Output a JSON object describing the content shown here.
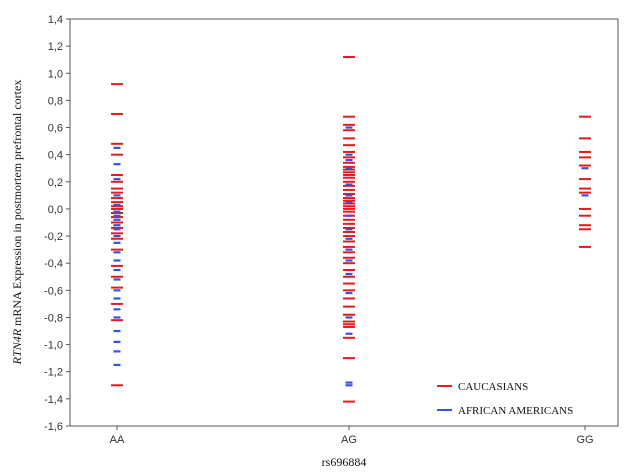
{
  "chart_data": {
    "type": "scatter",
    "xlabel": "rs696884",
    "ylabel_italic": "RTN4R",
    "ylabel_rest": " mRNA Expression in postmortem prefrontal cortex",
    "categories": [
      "AA",
      "AG",
      "GG"
    ],
    "ylim": [
      -1.6,
      1.4
    ],
    "yticks": [
      "1,4",
      "1,2",
      "1,0",
      "0,8",
      "0,6",
      "0,4",
      "0,2",
      "0,0",
      "-0,2",
      "-0,4",
      "-0,6",
      "-0,8",
      "-1,0",
      "-1,2",
      "-1,4",
      "-1,6"
    ],
    "grid": false,
    "legend_position": "bottom-right",
    "series": [
      {
        "name": "CAUCASIANS",
        "color": "#e41a1c",
        "points": [
          [
            "AA",
            0.92
          ],
          [
            "AA",
            0.7
          ],
          [
            "AA",
            0.48
          ],
          [
            "AA",
            0.4
          ],
          [
            "AA",
            0.25
          ],
          [
            "AA",
            0.2
          ],
          [
            "AA",
            0.15
          ],
          [
            "AA",
            0.12
          ],
          [
            "AA",
            0.08
          ],
          [
            "AA",
            0.05
          ],
          [
            "AA",
            0.02
          ],
          [
            "AA",
            0.0
          ],
          [
            "AA",
            -0.03
          ],
          [
            "AA",
            -0.06
          ],
          [
            "AA",
            -0.1
          ],
          [
            "AA",
            -0.14
          ],
          [
            "AA",
            -0.18
          ],
          [
            "AA",
            -0.22
          ],
          [
            "AA",
            -0.3
          ],
          [
            "AA",
            -0.42
          ],
          [
            "AA",
            -0.5
          ],
          [
            "AA",
            -0.58
          ],
          [
            "AA",
            -0.7
          ],
          [
            "AA",
            -0.82
          ],
          [
            "AA",
            -1.3
          ],
          [
            "AG",
            1.12
          ],
          [
            "AG",
            0.68
          ],
          [
            "AG",
            0.62
          ],
          [
            "AG",
            0.58
          ],
          [
            "AG",
            0.52
          ],
          [
            "AG",
            0.47
          ],
          [
            "AG",
            0.42
          ],
          [
            "AG",
            0.38
          ],
          [
            "AG",
            0.34
          ],
          [
            "AG",
            0.31
          ],
          [
            "AG",
            0.29
          ],
          [
            "AG",
            0.27
          ],
          [
            "AG",
            0.25
          ],
          [
            "AG",
            0.23
          ],
          [
            "AG",
            0.2
          ],
          [
            "AG",
            0.17
          ],
          [
            "AG",
            0.14
          ],
          [
            "AG",
            0.11
          ],
          [
            "AG",
            0.08
          ],
          [
            "AG",
            0.06
          ],
          [
            "AG",
            0.04
          ],
          [
            "AG",
            0.02
          ],
          [
            "AG",
            0.0
          ],
          [
            "AG",
            -0.02
          ],
          [
            "AG",
            -0.05
          ],
          [
            "AG",
            -0.08
          ],
          [
            "AG",
            -0.11
          ],
          [
            "AG",
            -0.14
          ],
          [
            "AG",
            -0.17
          ],
          [
            "AG",
            -0.2
          ],
          [
            "AG",
            -0.24
          ],
          [
            "AG",
            -0.28
          ],
          [
            "AG",
            -0.32
          ],
          [
            "AG",
            -0.36
          ],
          [
            "AG",
            -0.4
          ],
          [
            "AG",
            -0.45
          ],
          [
            "AG",
            -0.5
          ],
          [
            "AG",
            -0.55
          ],
          [
            "AG",
            -0.6
          ],
          [
            "AG",
            -0.66
          ],
          [
            "AG",
            -0.72
          ],
          [
            "AG",
            -0.78
          ],
          [
            "AG",
            -0.83
          ],
          [
            "AG",
            -0.85
          ],
          [
            "AG",
            -0.87
          ],
          [
            "AG",
            -0.95
          ],
          [
            "AG",
            -1.1
          ],
          [
            "AG",
            -1.42
          ],
          [
            "GG",
            0.68
          ],
          [
            "GG",
            0.52
          ],
          [
            "GG",
            0.42
          ],
          [
            "GG",
            0.38
          ],
          [
            "GG",
            0.32
          ],
          [
            "GG",
            0.22
          ],
          [
            "GG",
            0.15
          ],
          [
            "GG",
            0.12
          ],
          [
            "GG",
            0.0
          ],
          [
            "GG",
            -0.05
          ],
          [
            "GG",
            -0.12
          ],
          [
            "GG",
            -0.15
          ],
          [
            "GG",
            -0.28
          ]
        ]
      },
      {
        "name": "AFRICAN AMERICANS",
        "color": "#3355dd",
        "points": [
          [
            "AA",
            0.45
          ],
          [
            "AA",
            0.33
          ],
          [
            "AA",
            0.22
          ],
          [
            "AA",
            0.1
          ],
          [
            "AA",
            0.03
          ],
          [
            "AA",
            -0.02
          ],
          [
            "AA",
            -0.05
          ],
          [
            "AA",
            -0.08
          ],
          [
            "AA",
            -0.12
          ],
          [
            "AA",
            -0.15
          ],
          [
            "AA",
            -0.2
          ],
          [
            "AA",
            -0.25
          ],
          [
            "AA",
            -0.32
          ],
          [
            "AA",
            -0.38
          ],
          [
            "AA",
            -0.45
          ],
          [
            "AA",
            -0.52
          ],
          [
            "AA",
            -0.6
          ],
          [
            "AA",
            -0.66
          ],
          [
            "AA",
            -0.74
          ],
          [
            "AA",
            -0.8
          ],
          [
            "AA",
            -0.9
          ],
          [
            "AA",
            -0.98
          ],
          [
            "AA",
            -1.05
          ],
          [
            "AA",
            -1.15
          ],
          [
            "AG",
            0.6
          ],
          [
            "AG",
            0.4
          ],
          [
            "AG",
            0.36
          ],
          [
            "AG",
            0.3
          ],
          [
            "AG",
            0.18
          ],
          [
            "AG",
            0.1
          ],
          [
            "AG",
            0.05
          ],
          [
            "AG",
            -0.05
          ],
          [
            "AG",
            -0.15
          ],
          [
            "AG",
            -0.22
          ],
          [
            "AG",
            -0.3
          ],
          [
            "AG",
            -0.38
          ],
          [
            "AG",
            -0.48
          ],
          [
            "AG",
            -0.62
          ],
          [
            "AG",
            -0.8
          ],
          [
            "AG",
            -0.92
          ],
          [
            "AG",
            -1.28
          ],
          [
            "AG",
            -1.3
          ],
          [
            "GG",
            0.3
          ],
          [
            "GG",
            0.1
          ]
        ]
      }
    ]
  }
}
